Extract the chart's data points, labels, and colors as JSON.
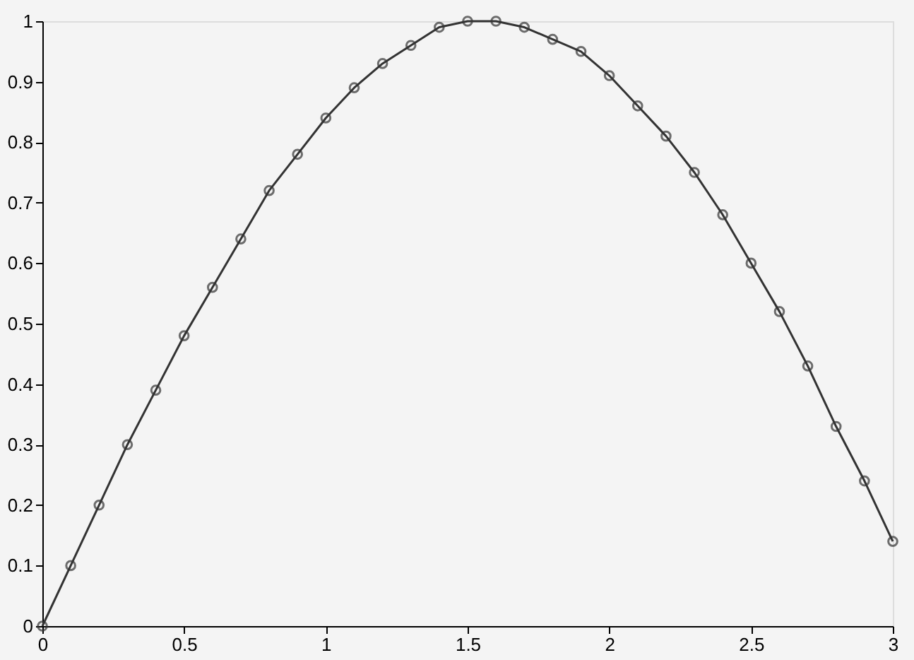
{
  "chart_data": {
    "type": "line",
    "x": [
      0,
      0.1,
      0.2,
      0.3,
      0.4,
      0.5,
      0.6,
      0.7,
      0.8,
      0.9,
      1.0,
      1.1,
      1.2,
      1.3,
      1.4,
      1.5,
      1.6,
      1.7,
      1.8,
      1.9,
      2.0,
      2.1,
      2.2,
      2.3,
      2.4,
      2.5,
      2.6,
      2.7,
      2.8,
      2.9,
      3.0
    ],
    "series": [
      {
        "color": "#333333",
        "values": [
          0,
          0.1,
          0.2,
          0.3,
          0.39,
          0.48,
          0.56,
          0.64,
          0.72,
          0.78,
          0.84,
          0.89,
          0.93,
          0.96,
          0.99,
          1.0,
          1.0,
          0.99,
          0.97,
          0.95,
          0.91,
          0.86,
          0.81,
          0.75,
          0.68,
          0.6,
          0.52,
          0.43,
          0.33,
          0.24,
          0.14
        ]
      }
    ],
    "xlim": [
      0,
      3
    ],
    "xticks": [
      0,
      0.5,
      1,
      1.5,
      2,
      2.5,
      3
    ],
    "ylim": [
      0,
      1
    ],
    "yticks": [
      0,
      0.1,
      0.2,
      0.3,
      0.4,
      0.5,
      0.6,
      0.7,
      0.8,
      0.9,
      1
    ],
    "marker": "circle",
    "line_style": "solid",
    "grid": false
  }
}
